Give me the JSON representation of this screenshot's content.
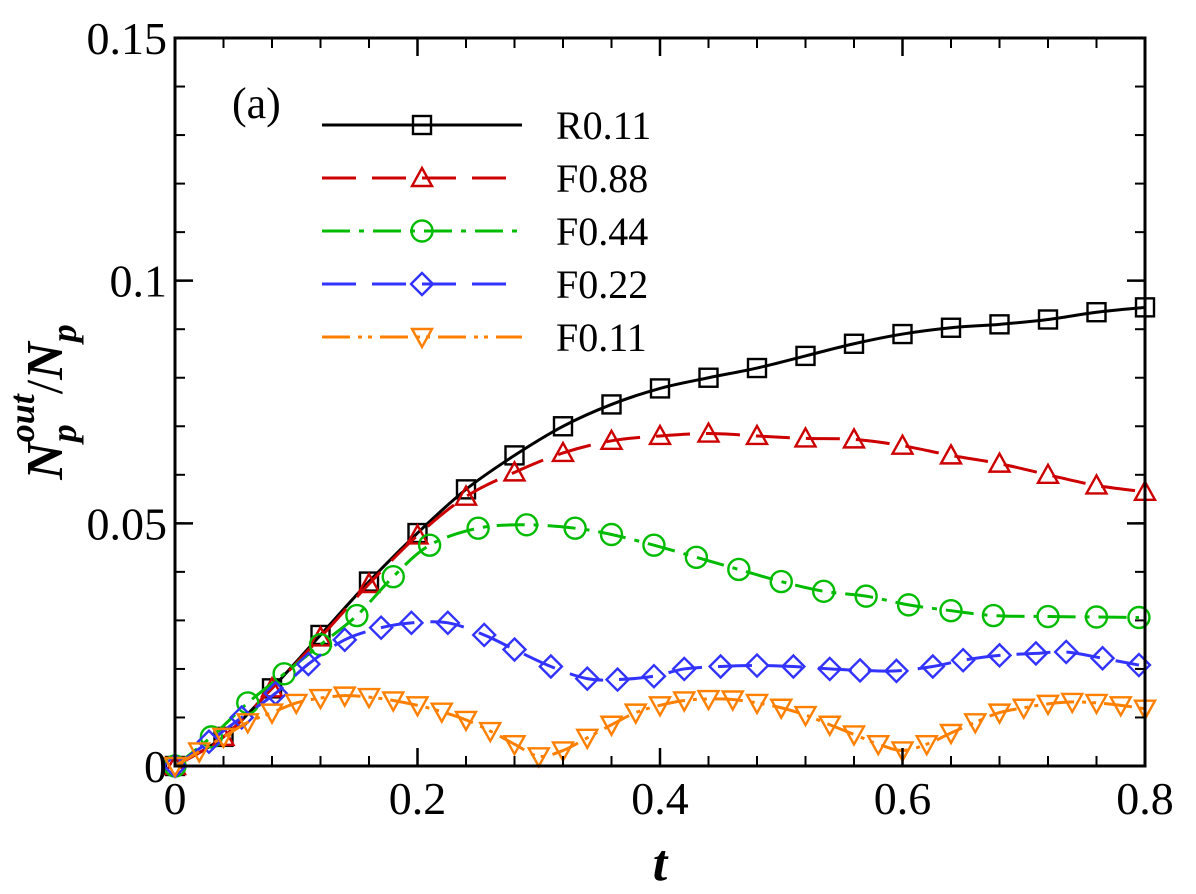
{
  "chart_data": {
    "type": "line",
    "panel_label": "(a)",
    "xlabel": "t",
    "ylabel": {
      "main": "N",
      "sub": "p",
      "sup": "out",
      "sep": "/",
      "main2": "N",
      "sub2": "p"
    },
    "xlim": [
      0,
      0.8
    ],
    "ylim": [
      0,
      0.15
    ],
    "xticks": [
      0,
      0.2,
      0.4,
      0.6,
      0.8
    ],
    "xtick_labels": [
      "0",
      "0.2",
      "0.4",
      "0.6",
      "0.8"
    ],
    "yticks": [
      0,
      0.05,
      0.1,
      0.15
    ],
    "ytick_labels": [
      "0",
      "0.05",
      "0.1",
      "0.15"
    ],
    "legend_position": "top-left",
    "grid": false,
    "series": [
      {
        "name": "R0.11",
        "color": "#000000",
        "dash": "solid",
        "marker": "square",
        "x": [
          0,
          0.04,
          0.08,
          0.12,
          0.16,
          0.2,
          0.24,
          0.28,
          0.32,
          0.36,
          0.4,
          0.44,
          0.48,
          0.52,
          0.56,
          0.6,
          0.64,
          0.68,
          0.72,
          0.76,
          0.8
        ],
        "y": [
          0,
          0.006,
          0.016,
          0.027,
          0.038,
          0.048,
          0.057,
          0.064,
          0.07,
          0.0745,
          0.0778,
          0.08,
          0.082,
          0.0845,
          0.087,
          0.089,
          0.0903,
          0.091,
          0.092,
          0.0935,
          0.0945
        ]
      },
      {
        "name": "F0.88",
        "color": "#cc0000",
        "dash": "long-dash",
        "marker": "triangle-up",
        "x": [
          0,
          0.04,
          0.08,
          0.12,
          0.16,
          0.2,
          0.24,
          0.28,
          0.32,
          0.36,
          0.4,
          0.44,
          0.48,
          0.52,
          0.56,
          0.6,
          0.64,
          0.68,
          0.72,
          0.76,
          0.8
        ],
        "y": [
          0,
          0.006,
          0.016,
          0.0265,
          0.0375,
          0.0475,
          0.0555,
          0.0605,
          0.0645,
          0.067,
          0.068,
          0.0685,
          0.068,
          0.0675,
          0.0673,
          0.066,
          0.064,
          0.0623,
          0.06,
          0.0578,
          0.0565
        ]
      },
      {
        "name": "F0.44",
        "color": "#00bb00",
        "dash": "dash-dot",
        "marker": "circle",
        "x": [
          0,
          0.03,
          0.06,
          0.09,
          0.12,
          0.15,
          0.18,
          0.21,
          0.25,
          0.29,
          0.33,
          0.36,
          0.395,
          0.43,
          0.465,
          0.5,
          0.535,
          0.57,
          0.605,
          0.64,
          0.675,
          0.72,
          0.76,
          0.795
        ],
        "y": [
          0,
          0.006,
          0.013,
          0.019,
          0.025,
          0.031,
          0.039,
          0.0455,
          0.049,
          0.0497,
          0.049,
          0.0477,
          0.0455,
          0.043,
          0.0405,
          0.038,
          0.036,
          0.035,
          0.0332,
          0.032,
          0.031,
          0.0308,
          0.0307,
          0.0306
        ]
      },
      {
        "name": "F0.22",
        "color": "#3333ff",
        "dash": "long-dash",
        "marker": "diamond",
        "x": [
          0,
          0.028,
          0.055,
          0.083,
          0.11,
          0.14,
          0.17,
          0.195,
          0.225,
          0.255,
          0.28,
          0.31,
          0.34,
          0.365,
          0.395,
          0.42,
          0.45,
          0.48,
          0.51,
          0.54,
          0.565,
          0.595,
          0.625,
          0.65,
          0.68,
          0.71,
          0.735,
          0.765,
          0.795
        ],
        "y": [
          0,
          0.005,
          0.01,
          0.015,
          0.021,
          0.026,
          0.0285,
          0.0295,
          0.0295,
          0.027,
          0.024,
          0.0205,
          0.018,
          0.0178,
          0.0185,
          0.02,
          0.0205,
          0.0207,
          0.0205,
          0.02,
          0.0197,
          0.0196,
          0.0205,
          0.0218,
          0.0228,
          0.0232,
          0.0235,
          0.0222,
          0.0208
        ]
      },
      {
        "name": "F0.11",
        "color": "#ff8000",
        "dash": "dash-dot-dot",
        "marker": "triangle-down",
        "x": [
          0,
          0.02,
          0.04,
          0.06,
          0.08,
          0.1,
          0.12,
          0.14,
          0.16,
          0.18,
          0.2,
          0.22,
          0.24,
          0.26,
          0.28,
          0.3,
          0.32,
          0.34,
          0.36,
          0.38,
          0.4,
          0.42,
          0.44,
          0.46,
          0.48,
          0.5,
          0.52,
          0.54,
          0.56,
          0.58,
          0.6,
          0.62,
          0.64,
          0.66,
          0.68,
          0.7,
          0.72,
          0.74,
          0.76,
          0.78,
          0.8
        ],
        "y": [
          0,
          0.003,
          0.006,
          0.009,
          0.011,
          0.013,
          0.014,
          0.0145,
          0.0142,
          0.0135,
          0.0125,
          0.0112,
          0.0095,
          0.0072,
          0.0045,
          0.002,
          0.0032,
          0.0058,
          0.0085,
          0.011,
          0.0125,
          0.0135,
          0.0138,
          0.0137,
          0.013,
          0.012,
          0.0105,
          0.0085,
          0.0065,
          0.0045,
          0.0032,
          0.0045,
          0.0068,
          0.009,
          0.011,
          0.012,
          0.0128,
          0.0132,
          0.013,
          0.0125,
          0.0118
        ]
      }
    ]
  }
}
